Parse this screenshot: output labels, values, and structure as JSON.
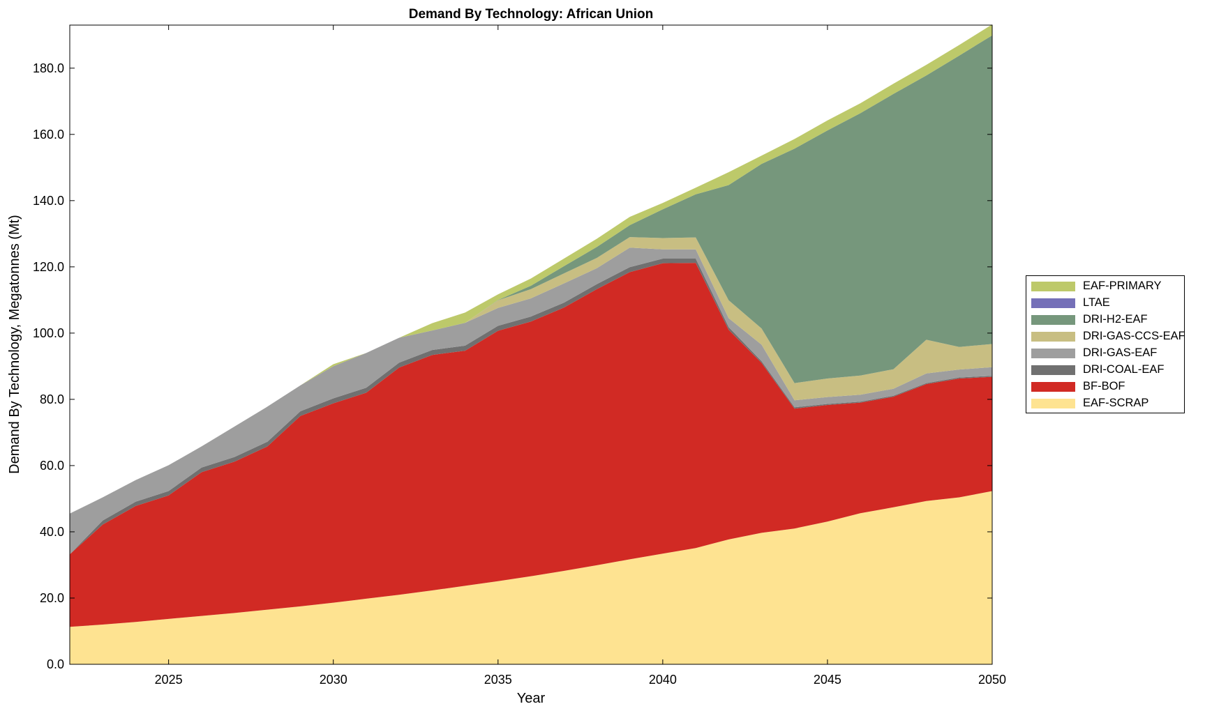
{
  "chart_data": {
    "type": "area",
    "stacked": true,
    "title": "Demand By Technology: African Union",
    "xlabel": "Year",
    "ylabel": "Demand By Technology, Megatonnes (Mt)",
    "xlim": [
      2022,
      2050
    ],
    "ylim": [
      0,
      193
    ],
    "xticks": [
      2025,
      2030,
      2035,
      2040,
      2045,
      2050
    ],
    "yticks": [
      0,
      20,
      40,
      60,
      80,
      100,
      120,
      140,
      160,
      180
    ],
    "ytick_labels": [
      "0.0",
      "20.0",
      "40.0",
      "60.0",
      "80.0",
      "100.0",
      "120.0",
      "140.0",
      "160.0",
      "180.0"
    ],
    "grid": false,
    "legend_position": "right",
    "x": [
      2022,
      2023,
      2024,
      2025,
      2026,
      2027,
      2028,
      2029,
      2030,
      2031,
      2032,
      2033,
      2034,
      2035,
      2036,
      2037,
      2038,
      2039,
      2040,
      2041,
      2042,
      2043,
      2044,
      2045,
      2046,
      2047,
      2048,
      2049,
      2050
    ],
    "series": [
      {
        "name": "EAF-SCRAP",
        "color": "#FEE391",
        "values": [
          11.3,
          12.0,
          12.8,
          13.7,
          14.6,
          15.5,
          16.5,
          17.5,
          18.6,
          19.8,
          21.0,
          22.3,
          23.7,
          25.1,
          26.6,
          28.2,
          29.9,
          31.7,
          33.4,
          35.1,
          37.7,
          39.7,
          41.0,
          43.1,
          45.6,
          47.4,
          49.3,
          50.4,
          52.3
        ]
      },
      {
        "name": "BF-BOF",
        "color": "#D12A24",
        "values": [
          21.9,
          30.2,
          35.0,
          37.3,
          43.4,
          45.7,
          49.3,
          57.5,
          60.2,
          62.2,
          68.6,
          71.1,
          71.0,
          75.6,
          76.9,
          79.5,
          83.4,
          86.7,
          87.7,
          86.1,
          63.3,
          51.3,
          36.2,
          35.2,
          33.4,
          33.4,
          35.3,
          35.9,
          34.5
        ]
      },
      {
        "name": "DRI-COAL-EAF",
        "color": "#707070",
        "values": [
          0.0,
          1.2,
          1.3,
          1.3,
          1.4,
          1.4,
          1.4,
          1.4,
          1.5,
          1.5,
          1.5,
          1.5,
          1.5,
          1.5,
          1.5,
          1.5,
          1.5,
          1.5,
          1.4,
          1.3,
          0.8,
          0.5,
          0.4,
          0.3,
          0.3,
          0.3,
          0.3,
          0.3,
          0.3
        ]
      },
      {
        "name": "DRI-GAS-EAF",
        "color": "#9E9E9E",
        "values": [
          12.3,
          7.0,
          6.5,
          7.8,
          6.4,
          9.2,
          10.6,
          7.8,
          9.7,
          10.5,
          7.5,
          5.9,
          6.9,
          5.4,
          5.5,
          5.8,
          4.8,
          5.9,
          2.8,
          2.8,
          2.7,
          5.0,
          2.1,
          2.1,
          2.1,
          2.1,
          2.9,
          2.4,
          2.6
        ]
      },
      {
        "name": "DRI-GAS-CCS-EAF",
        "color": "#C8BE82",
        "values": [
          0.0,
          0.0,
          0.0,
          0.0,
          0.0,
          0.0,
          0.0,
          0.0,
          0.0,
          0.0,
          0.0,
          0.0,
          0.0,
          2.3,
          2.8,
          3.0,
          3.1,
          3.2,
          3.4,
          3.6,
          5.4,
          4.9,
          5.2,
          5.6,
          5.8,
          5.9,
          10.2,
          6.8,
          7.0
        ]
      },
      {
        "name": "DRI-H2-EAF",
        "color": "#76977C",
        "values": [
          0.0,
          0.0,
          0.0,
          0.0,
          0.0,
          0.0,
          0.0,
          0.0,
          0.0,
          0.0,
          0.0,
          0.0,
          0.0,
          0.1,
          1.0,
          2.2,
          3.3,
          3.6,
          8.7,
          13.0,
          34.8,
          49.7,
          70.8,
          74.9,
          79.2,
          83.1,
          79.8,
          88.0,
          93.2
        ]
      },
      {
        "name": "LTAE",
        "color": "#7570B8",
        "values": [
          0.0,
          0.0,
          0.0,
          0.0,
          0.0,
          0.0,
          0.0,
          0.0,
          0.0,
          0.0,
          0.0,
          0.0,
          0.0,
          0.0,
          0.0,
          0.0,
          0.0,
          0.0,
          0.0,
          0.0,
          0.0,
          0.0,
          0.0,
          0.0,
          0.0,
          0.0,
          0.0,
          0.0,
          0.0
        ]
      },
      {
        "name": "EAF-PRIMARY",
        "color": "#BDC96A",
        "values": [
          0.0,
          0.0,
          0.0,
          0.0,
          0.0,
          0.0,
          0.0,
          0.0,
          0.6,
          0.0,
          0.0,
          2.2,
          3.1,
          1.7,
          2.2,
          2.3,
          2.5,
          2.5,
          1.9,
          2.0,
          3.9,
          2.5,
          2.9,
          3.0,
          3.0,
          3.1,
          3.2,
          3.2,
          3.3
        ]
      }
    ],
    "legend_order": [
      "EAF-PRIMARY",
      "LTAE",
      "DRI-H2-EAF",
      "DRI-GAS-CCS-EAF",
      "DRI-GAS-EAF",
      "DRI-COAL-EAF",
      "BF-BOF",
      "EAF-SCRAP"
    ]
  }
}
